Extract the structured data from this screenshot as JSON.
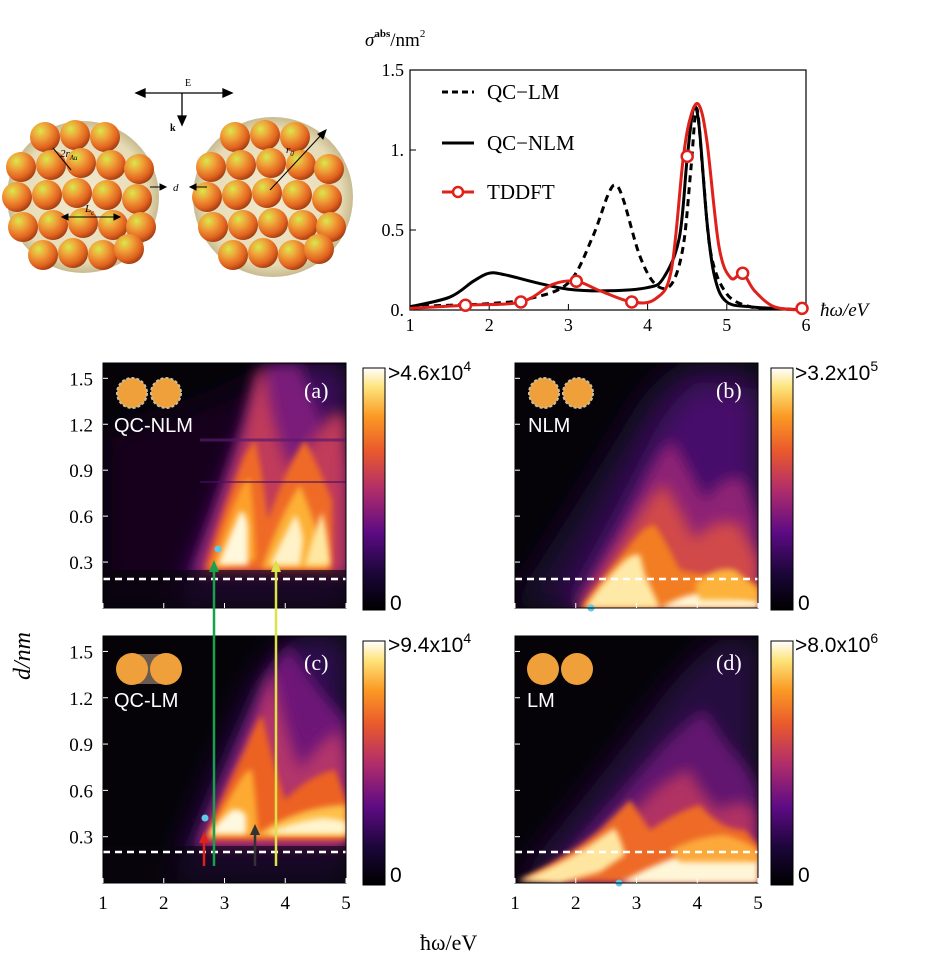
{
  "schematic": {
    "field_label": "E",
    "wavevector_label": "k",
    "radius_label": "2r",
    "radius_sub": "Au",
    "lattice_label": "L",
    "lattice_sub": "c",
    "gap_label": "d",
    "cluster_radius_label": "r",
    "cluster_radius_sub": "0"
  },
  "spectrum": {
    "ylabel_main": "σ",
    "ylabel_sup": "abs",
    "ylabel_unit": "/nm",
    "ylabel_unit_sup": "2",
    "xlabel": "ħω/eV",
    "x_ticks": [
      "1",
      "2",
      "3",
      "4",
      "5",
      "6"
    ],
    "y_ticks": [
      "0.",
      "0.5",
      "1.",
      "1.5"
    ],
    "legend": [
      "QC−LM",
      "QC−NLM",
      "TDDFT"
    ]
  },
  "maps": {
    "ylabel": "d/nm",
    "xlabel": "ħω/eV",
    "y_ticks": [
      "0.3",
      "0.6",
      "0.9",
      "1.2",
      "1.5"
    ],
    "x_ticks": [
      "1",
      "2",
      "3",
      "4",
      "5"
    ],
    "panels": [
      {
        "letter": "(a)",
        "model": "QC-NLM",
        "cbar_max_prefix": ">4.6x10",
        "cbar_exp": "4",
        "cbar_min": "0"
      },
      {
        "letter": "(b)",
        "model": "NLM",
        "cbar_max_prefix": ">3.2x10",
        "cbar_exp": "5",
        "cbar_min": "0"
      },
      {
        "letter": "(c)",
        "model": "QC-LM",
        "cbar_max_prefix": ">9.4x10",
        "cbar_exp": "4",
        "cbar_min": "0"
      },
      {
        "letter": "(d)",
        "model": "LM",
        "cbar_max_prefix": ">8.0x10",
        "cbar_exp": "6",
        "cbar_min": "0"
      }
    ]
  },
  "chart_data": [
    {
      "type": "line",
      "xlim": [
        1,
        6
      ],
      "ylim": [
        0,
        1.5
      ],
      "xlabel": "ħω/eV",
      "ylabel": "σabs/nm2",
      "legend_placement": "top-left",
      "series": [
        {
          "name": "QC−LM",
          "style": "dashed",
          "color": "#000000",
          "x": [
            1,
            1.5,
            2,
            2.5,
            3,
            3.3,
            3.5,
            3.6,
            3.7,
            3.9,
            4.1,
            4.3,
            4.45,
            4.55,
            4.62,
            4.7,
            4.8,
            5.0,
            5.3,
            5.6,
            6
          ],
          "y": [
            0.02,
            0.03,
            0.04,
            0.07,
            0.17,
            0.45,
            0.72,
            0.78,
            0.68,
            0.34,
            0.16,
            0.16,
            0.4,
            0.9,
            1.26,
            0.85,
            0.35,
            0.1,
            0.02,
            0.01,
            0.0
          ]
        },
        {
          "name": "QC−NLM",
          "style": "solid",
          "color": "#000000",
          "x": [
            1,
            1.5,
            1.8,
            2.0,
            2.2,
            2.6,
            3,
            3.5,
            4.0,
            4.2,
            4.4,
            4.5,
            4.58,
            4.65,
            4.75,
            4.85,
            5.0,
            5.3,
            5.6,
            6
          ],
          "y": [
            0.02,
            0.08,
            0.18,
            0.23,
            0.22,
            0.17,
            0.13,
            0.12,
            0.14,
            0.2,
            0.45,
            0.95,
            1.26,
            1.15,
            0.55,
            0.2,
            0.05,
            0.02,
            0.01,
            0.0
          ]
        },
        {
          "name": "TDDFT",
          "style": "solid",
          "color": "#e0201b",
          "x": [
            1,
            1.7,
            2.4,
            2.8,
            3.1,
            3.4,
            3.8,
            4.1,
            4.3,
            4.45,
            4.55,
            4.65,
            4.75,
            4.9,
            5.05,
            5.2,
            5.35,
            5.6,
            5.95
          ],
          "y": [
            0.01,
            0.03,
            0.05,
            0.16,
            0.18,
            0.12,
            0.05,
            0.07,
            0.25,
            0.95,
            1.22,
            1.28,
            1.05,
            0.4,
            0.2,
            0.23,
            0.12,
            0.02,
            0.0
          ],
          "markers_x": [
            1.7,
            2.4,
            3.1,
            3.8,
            4.5,
            5.2,
            5.95
          ],
          "markers_y": [
            0.03,
            0.05,
            0.18,
            0.05,
            0.96,
            0.23,
            0.01
          ]
        }
      ]
    },
    {
      "type": "heatmap",
      "panel": "(a)",
      "model": "QC-NLM",
      "xlim": [
        1,
        5
      ],
      "ylim": [
        0,
        1.6
      ],
      "colorbar_max": ">4.6x10^4",
      "dashed_line_d": 0.2,
      "cyan_point": [
        2.85,
        0.4
      ]
    },
    {
      "type": "heatmap",
      "panel": "(b)",
      "model": "NLM",
      "xlim": [
        1,
        5
      ],
      "ylim": [
        0,
        1.6
      ],
      "colorbar_max": ">3.2x10^5",
      "dashed_line_d": 0.2,
      "cyan_point": [
        2.25,
        0.0
      ]
    },
    {
      "type": "heatmap",
      "panel": "(c)",
      "model": "QC-LM",
      "xlim": [
        1,
        5
      ],
      "ylim": [
        0,
        1.6
      ],
      "colorbar_max": ">9.4x10^4",
      "dashed_line_d": 0.2,
      "cyan_point": [
        2.65,
        0.42
      ],
      "arrows": [
        {
          "color": "#e0201b",
          "x": 2.65
        },
        {
          "color": "#18a04a",
          "x": 2.85
        },
        {
          "color": "#333333",
          "x": 3.45
        },
        {
          "color": "#dbe24a",
          "x": 3.8
        }
      ]
    },
    {
      "type": "heatmap",
      "panel": "(d)",
      "model": "LM",
      "xlim": [
        1,
        5
      ],
      "ylim": [
        0,
        1.6
      ],
      "colorbar_max": ">8.0x10^6",
      "dashed_line_d": 0.2,
      "cyan_point": [
        2.75,
        0.0
      ]
    }
  ]
}
